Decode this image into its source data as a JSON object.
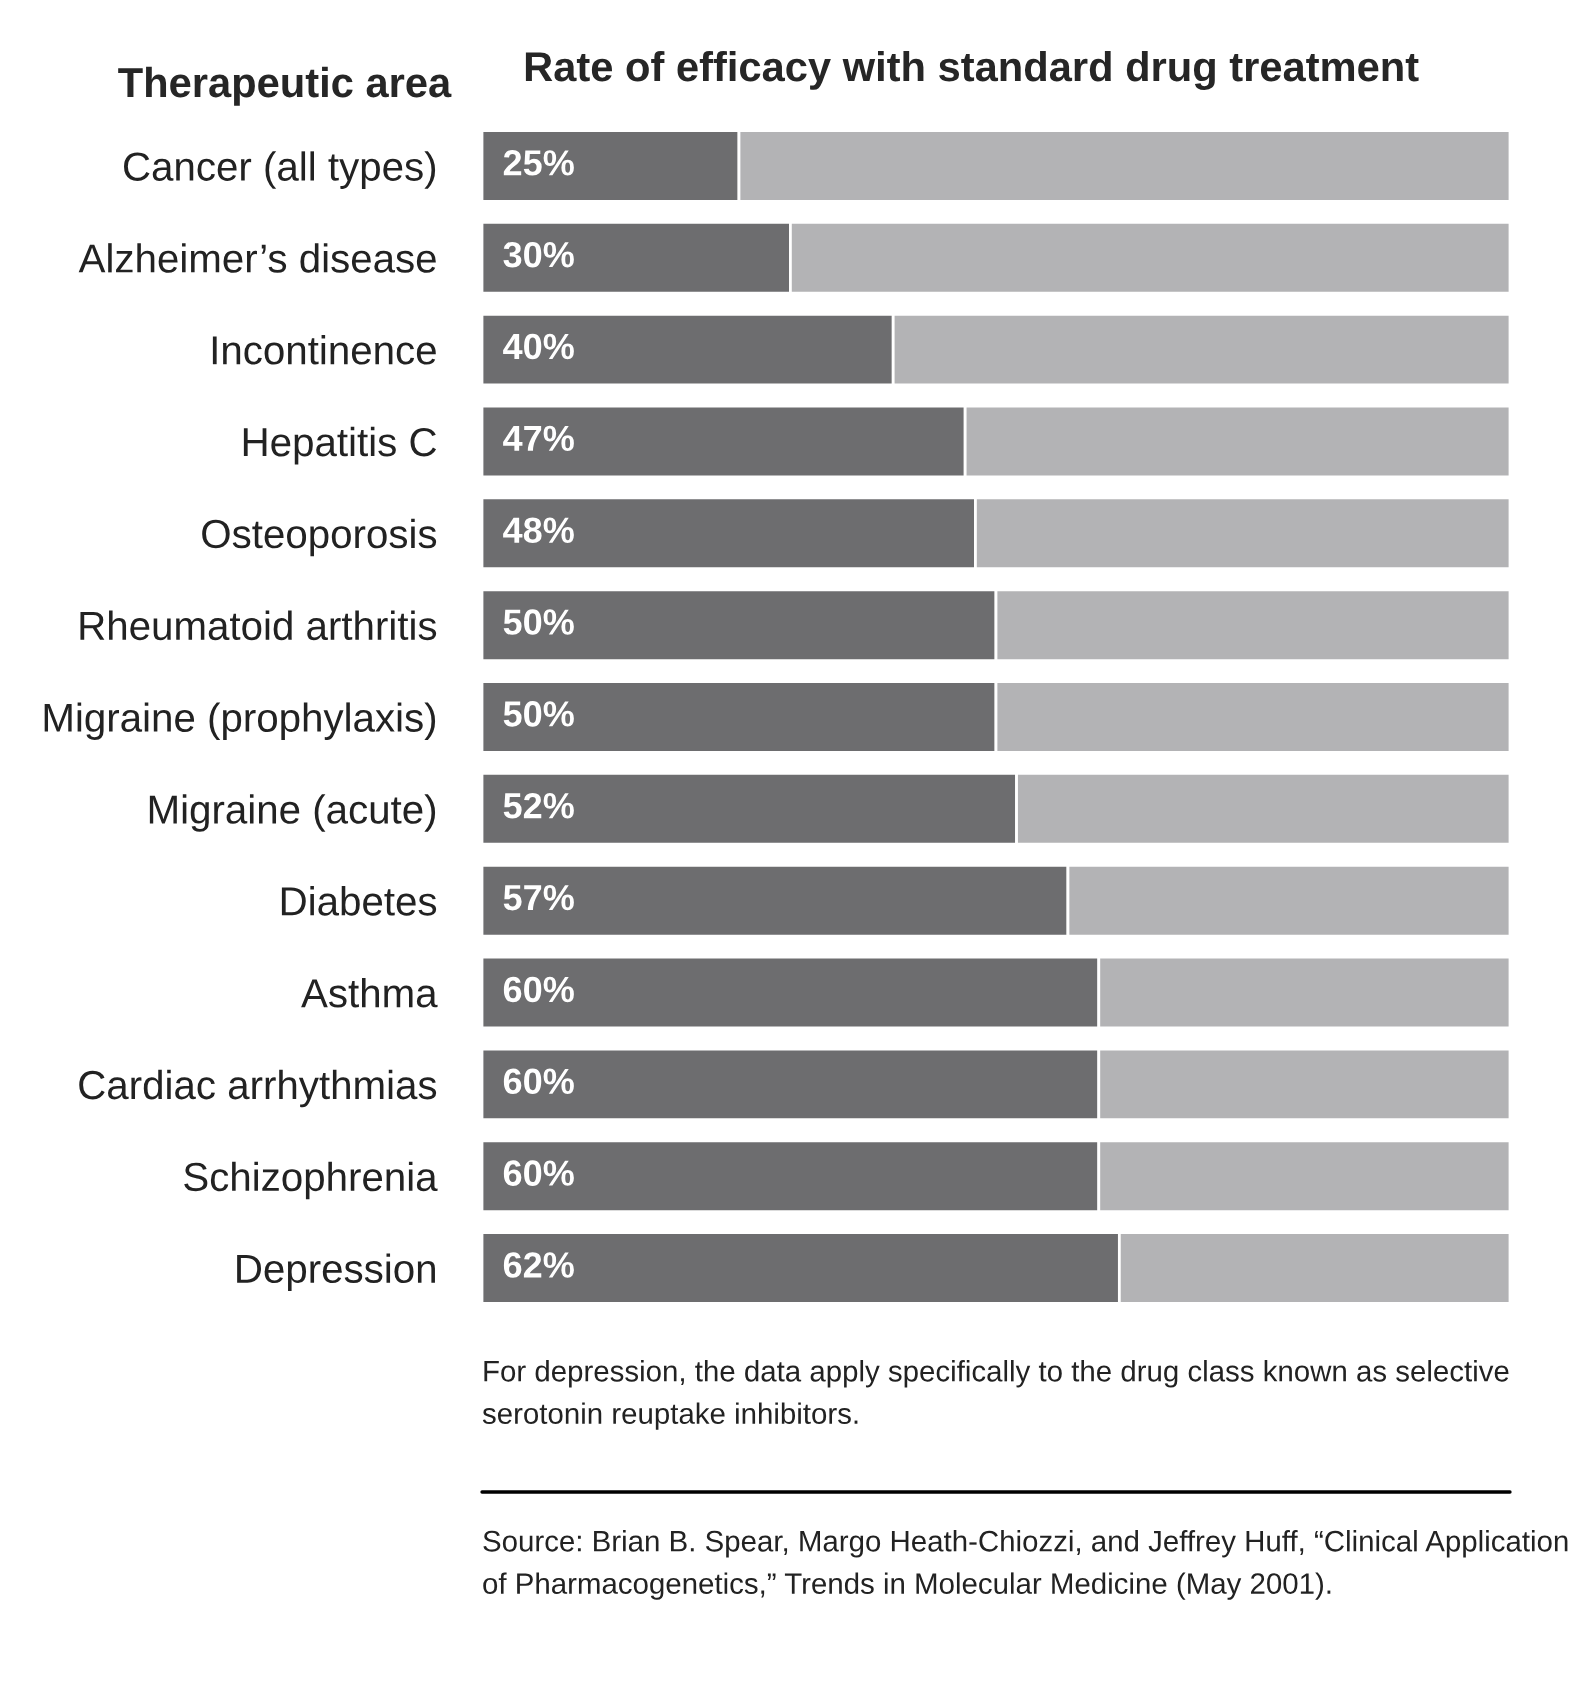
{
  "chart_data": {
    "type": "bar",
    "orientation": "horizontal",
    "stacked": true,
    "title": "Rate of efficacy with standard drug treatment",
    "ylabel": "Therapeutic area",
    "categories": [
      "Cancer (all types)",
      "Alzheimer’s disease",
      "Incontinence",
      "Hepatitis C",
      "Osteoporosis",
      "Rheumatoid arthritis",
      "Migraine (prophylaxis)",
      "Migraine (acute)",
      "Diabetes",
      "Asthma",
      "Cardiac arrhythmias",
      "Schizophrenia",
      "Depression"
    ],
    "series": [
      {
        "color": "#6d6d6f",
        "values": [
          25,
          30,
          40,
          47,
          48,
          50,
          50,
          52,
          57,
          60,
          60,
          60,
          62
        ],
        "value_labels": [
          "25%",
          "30%",
          "40%",
          "47%",
          "48%",
          "50%",
          "50%",
          "52%",
          "57%",
          "60%",
          "60%",
          "60%",
          "62%"
        ]
      },
      {
        "color": "#b3b3b5",
        "values": [
          75,
          70,
          60,
          53,
          52,
          50,
          50,
          48,
          43,
          40,
          40,
          40,
          38
        ]
      }
    ],
    "xlim": [
      0,
      100
    ],
    "tick_labels": "y",
    "legend": false,
    "annotations": [
      "For depression, the data apply specifically to the drug class known as selective serotonin reuptake inhibitors.",
      "Source: Brian B. Spear, Margo Heath-Chiozzi, and Jeffrey Huff, “Clinical Application of Pharmacogenetics,” Trends in Molecular Medicine (May 2001)."
    ]
  }
}
